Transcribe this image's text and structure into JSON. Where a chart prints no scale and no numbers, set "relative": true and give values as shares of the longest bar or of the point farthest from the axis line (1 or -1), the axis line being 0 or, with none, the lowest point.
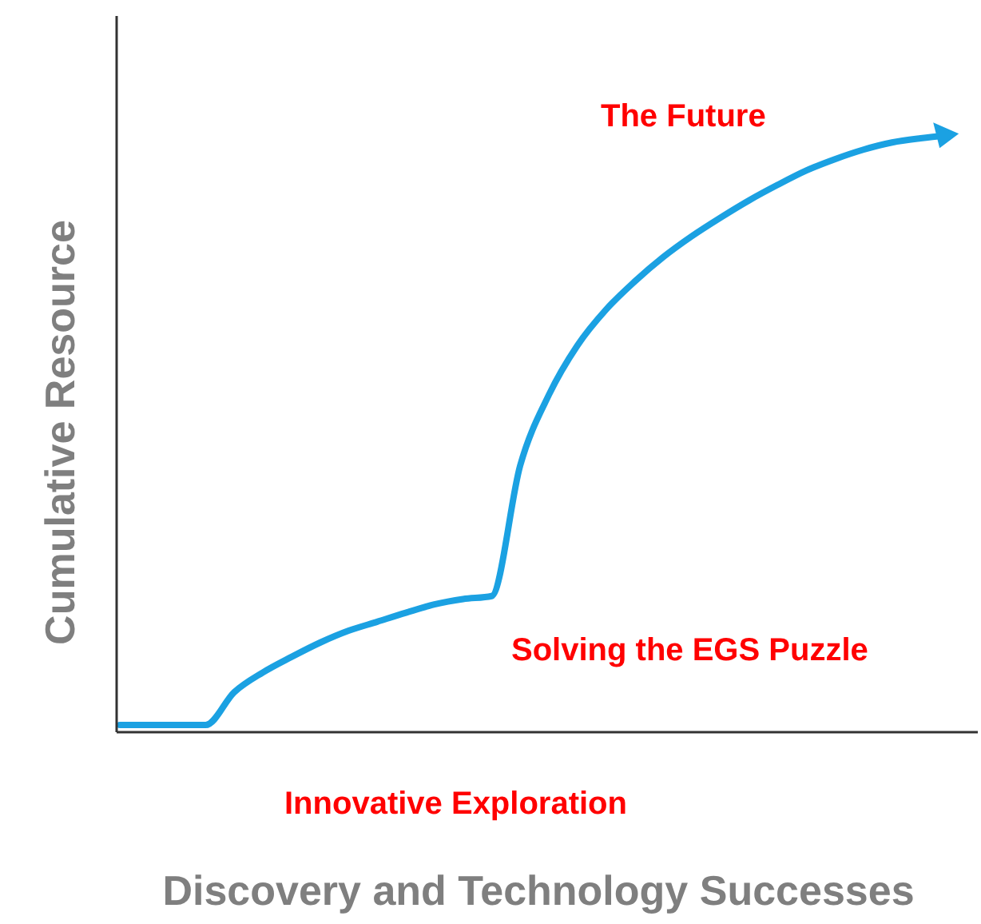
{
  "chart_data": {
    "type": "line",
    "relative": true,
    "xlabel": "Discovery and Technology Successes",
    "ylabel": "Cumulative Resource",
    "categories": [
      null,
      null,
      null,
      null,
      null,
      null,
      null,
      null,
      null,
      null,
      null,
      null,
      null,
      null,
      null,
      null,
      null,
      null,
      null,
      null,
      null,
      null,
      null,
      null,
      null,
      null,
      null,
      null,
      null,
      null,
      null
    ],
    "series": [
      {
        "color": "#1ba1e2",
        "values": [
          0.012,
          0.012,
          0.012,
          0.012,
          0.067,
          0.1,
          0.126,
          0.15,
          0.17,
          0.185,
          0.2,
          0.214,
          0.223,
          0.228,
          0.447,
          0.565,
          0.648,
          0.708,
          0.755,
          0.796,
          0.831,
          0.862,
          0.891,
          0.917,
          0.941,
          0.96,
          0.976,
          0.988,
          0.995,
          1,
          null
        ]
      }
    ],
    "annotations": [
      "The Future",
      "Solving the EGS Puzzle",
      "Innovative Exploration"
    ],
    "marker": "none"
  }
}
